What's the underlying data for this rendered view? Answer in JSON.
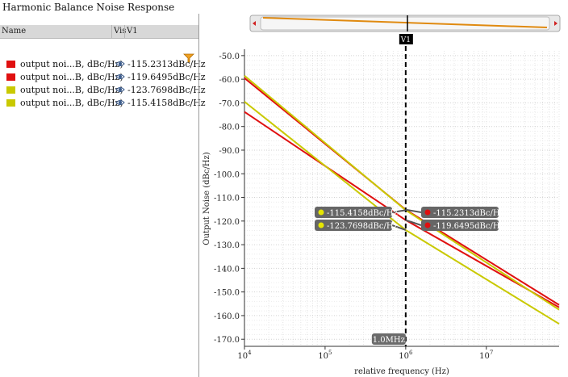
{
  "window": {
    "title": "Harmonic Balance Noise Response"
  },
  "table": {
    "columns": [
      "Name",
      "Vis",
      "V1"
    ],
    "rows": [
      {
        "name": "output noi...B, dBc/Hz)",
        "value": "-115.2313dBc/Hz",
        "color": "#e01010"
      },
      {
        "name": "output noi...B, dBc/Hz)",
        "value": "-119.6495dBc/Hz",
        "color": "#e01010"
      },
      {
        "name": "output noi...B, dBc/Hz)",
        "value": "-123.7698dBc/Hz",
        "color": "#c9c900"
      },
      {
        "name": "output noi...B, dBc/Hz)",
        "value": "-115.4158dBc/Hz",
        "color": "#c9c900"
      }
    ]
  },
  "marker": {
    "name": "V1",
    "x_label": "1.0MHz"
  },
  "chart_data": {
    "type": "line",
    "xlabel": "relative frequency (Hz)",
    "ylabel": "Output Noise (dBc/Hz)",
    "xscale": "log",
    "xlim": [
      10000,
      80000000
    ],
    "ylim": [
      -173,
      -48
    ],
    "yticks": [
      -50,
      -60,
      -70,
      -80,
      -90,
      -100,
      -110,
      -120,
      -130,
      -140,
      -150,
      -160,
      -170
    ],
    "ytick_labels": [
      "-50.0",
      "-60.0",
      "-70.0",
      "-80.0",
      "-90.0",
      "-100.0",
      "-110.0",
      "-120.0",
      "-130.0",
      "-140.0",
      "-150.0",
      "-160.0",
      "-170.0"
    ],
    "xticks": [
      10000,
      100000,
      1000000,
      10000000
    ],
    "xtick_labels": [
      [
        "10",
        "4"
      ],
      [
        "10",
        "5"
      ],
      [
        "10",
        "6"
      ],
      [
        "10",
        "7"
      ]
    ],
    "grid": true,
    "series": [
      {
        "color": "#e01010",
        "x": [
          10000,
          1000000,
          80000000
        ],
        "y": [
          -59.5,
          -115.2,
          -155.5
        ]
      },
      {
        "color": "#e01010",
        "x": [
          10000,
          1000000,
          80000000
        ],
        "y": [
          -73.8,
          -119.6,
          -156.5
        ]
      },
      {
        "color": "#c9c900",
        "x": [
          10000,
          1000000,
          80000000
        ],
        "y": [
          -69.5,
          -123.8,
          -163.5
        ]
      },
      {
        "color": "#c9c900",
        "x": [
          10000,
          1000000,
          80000000
        ],
        "y": [
          -58.5,
          -115.4,
          -157.5
        ]
      }
    ],
    "annotations": [
      {
        "label": "-115.2313dBc/Hz",
        "color": "#e01010",
        "side": "right",
        "x": 1000000,
        "y": -115.2
      },
      {
        "label": "-119.6495dBc/Hz",
        "color": "#e01010",
        "side": "right",
        "x": 1000000,
        "y": -119.6
      },
      {
        "label": "-115.4158dBc/Hz",
        "color": "#e6e600",
        "side": "left",
        "x": 1000000,
        "y": -115.4
      },
      {
        "label": "-123.7698dBc/Hz",
        "color": "#e6e600",
        "side": "left",
        "x": 1000000,
        "y": -123.8
      }
    ]
  }
}
